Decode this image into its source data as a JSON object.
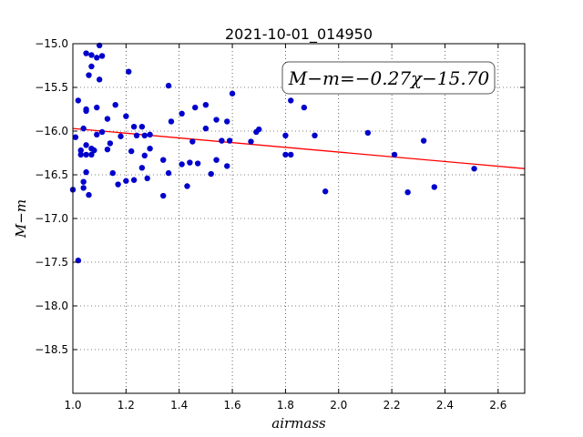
{
  "chart_data": {
    "type": "scatter",
    "title": "2021-10-01_014950",
    "xlabel": "airmass",
    "ylabel": "M−m",
    "xlim": [
      1.0,
      2.7
    ],
    "ylim": [
      -15.0,
      -19.0
    ],
    "y_inverted": true,
    "xticks": [
      1.0,
      1.2,
      1.4,
      1.6,
      1.8,
      2.0,
      2.2,
      2.4,
      2.6
    ],
    "xtick_labels": [
      "1.0",
      "1.2",
      "1.4",
      "1.6",
      "1.8",
      "2.0",
      "2.2",
      "2.4",
      "2.6"
    ],
    "yticks": [
      -15.0,
      -15.5,
      -16.0,
      -16.5,
      -17.0,
      -17.5,
      -18.0,
      -18.5
    ],
    "ytick_labels": [
      "−15.0",
      "−15.5",
      "−16.0",
      "−16.5",
      "−17.0",
      "−17.5",
      "−18.0",
      "−18.5"
    ],
    "grid": true,
    "annotation": "M−m=−0.27χ−15.70",
    "fit_line": {
      "slope": -0.27,
      "intercept": -15.7,
      "color": "#ff0000"
    },
    "point_color": "#0000cc",
    "points": [
      [
        1.0,
        -16.67
      ],
      [
        1.01,
        -16.07
      ],
      [
        1.02,
        -15.65
      ],
      [
        1.02,
        -17.48
      ],
      [
        1.03,
        -16.22
      ],
      [
        1.03,
        -16.27
      ],
      [
        1.04,
        -15.97
      ],
      [
        1.04,
        -16.58
      ],
      [
        1.04,
        -16.65
      ],
      [
        1.05,
        -15.11
      ],
      [
        1.05,
        -15.75
      ],
      [
        1.05,
        -15.77
      ],
      [
        1.05,
        -16.16
      ],
      [
        1.05,
        -16.47
      ],
      [
        1.05,
        -16.27
      ],
      [
        1.06,
        -16.73
      ],
      [
        1.06,
        -15.36
      ],
      [
        1.07,
        -15.26
      ],
      [
        1.07,
        -15.13
      ],
      [
        1.07,
        -16.27
      ],
      [
        1.07,
        -16.2
      ],
      [
        1.08,
        -16.22
      ],
      [
        1.09,
        -15.73
      ],
      [
        1.09,
        -15.16
      ],
      [
        1.09,
        -16.04
      ],
      [
        1.1,
        -15.41
      ],
      [
        1.1,
        -15.02
      ],
      [
        1.11,
        -15.14
      ],
      [
        1.11,
        -16.01
      ],
      [
        1.13,
        -16.21
      ],
      [
        1.13,
        -15.86
      ],
      [
        1.14,
        -16.14
      ],
      [
        1.15,
        -16.48
      ],
      [
        1.16,
        -15.7
      ],
      [
        1.17,
        -16.61
      ],
      [
        1.18,
        -16.06
      ],
      [
        1.2,
        -16.57
      ],
      [
        1.2,
        -15.83
      ],
      [
        1.21,
        -15.32
      ],
      [
        1.22,
        -16.23
      ],
      [
        1.23,
        -15.95
      ],
      [
        1.23,
        -16.56
      ],
      [
        1.24,
        -16.05
      ],
      [
        1.26,
        -15.95
      ],
      [
        1.26,
        -16.42
      ],
      [
        1.27,
        -16.05
      ],
      [
        1.27,
        -16.28
      ],
      [
        1.28,
        -16.54
      ],
      [
        1.29,
        -16.04
      ],
      [
        1.29,
        -16.2
      ],
      [
        1.34,
        -16.74
      ],
      [
        1.34,
        -16.33
      ],
      [
        1.36,
        -15.48
      ],
      [
        1.36,
        -16.48
      ],
      [
        1.37,
        -15.89
      ],
      [
        1.41,
        -15.8
      ],
      [
        1.41,
        -16.38
      ],
      [
        1.43,
        -16.63
      ],
      [
        1.44,
        -16.36
      ],
      [
        1.45,
        -16.12
      ],
      [
        1.46,
        -15.73
      ],
      [
        1.47,
        -16.37
      ],
      [
        1.5,
        -15.97
      ],
      [
        1.5,
        -15.7
      ],
      [
        1.52,
        -16.49
      ],
      [
        1.54,
        -15.87
      ],
      [
        1.54,
        -16.33
      ],
      [
        1.56,
        -16.11
      ],
      [
        1.58,
        -15.89
      ],
      [
        1.58,
        -16.4
      ],
      [
        1.59,
        -16.11
      ],
      [
        1.6,
        -15.57
      ],
      [
        1.67,
        -16.12
      ],
      [
        1.69,
        -16.01
      ],
      [
        1.7,
        -15.98
      ],
      [
        1.8,
        -16.05
      ],
      [
        1.8,
        -16.27
      ],
      [
        1.82,
        -15.65
      ],
      [
        1.82,
        -16.27
      ],
      [
        1.87,
        -15.73
      ],
      [
        1.91,
        -16.05
      ],
      [
        1.95,
        -16.69
      ],
      [
        2.11,
        -16.02
      ],
      [
        2.21,
        -16.27
      ],
      [
        2.26,
        -16.7
      ],
      [
        2.32,
        -16.11
      ],
      [
        2.36,
        -16.64
      ],
      [
        2.51,
        -16.43
      ]
    ]
  }
}
